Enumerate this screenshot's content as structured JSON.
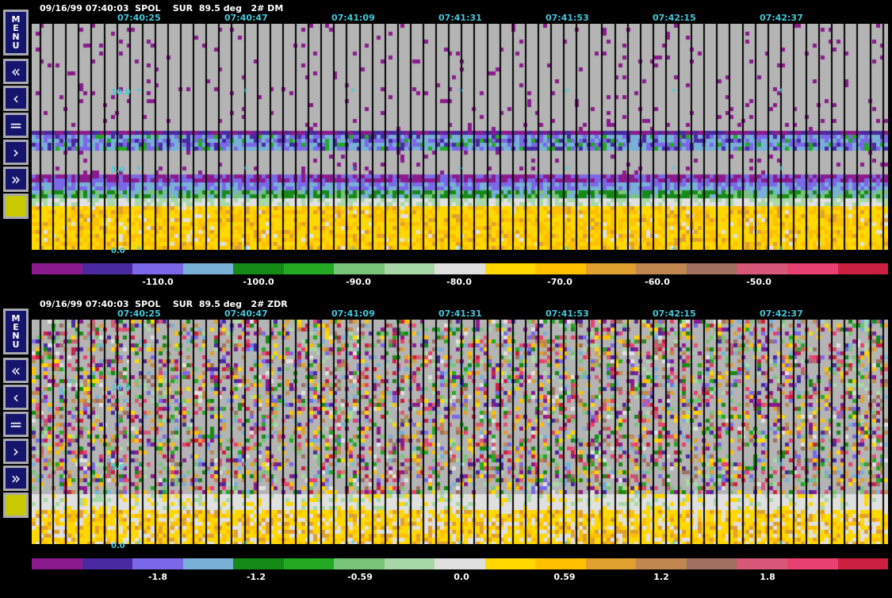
{
  "palette": [
    "#8b1a8e",
    "#4a2aa0",
    "#7b68e8",
    "#78b0d8",
    "#168a16",
    "#22aa22",
    "#78c478",
    "#a8d8a8",
    "#e0e0e0",
    "#ffd800",
    "#ffc000",
    "#e0a030",
    "#c08850",
    "#a07060",
    "#d85878",
    "#e84070",
    "#cc2040"
  ],
  "panels": [
    {
      "header": "09/16/99 07:40:03  SPOL    SUR  89.5 deg   2# DM",
      "times": [
        "07:40:25",
        "07:40:47",
        "07:41:09",
        "07:41:31",
        "07:41:53",
        "07:42:15",
        "07:42:37"
      ],
      "range_labels": [
        "10.0",
        "5.0",
        "0.0"
      ],
      "colorbar_labels": [
        "-110.0",
        "-100.0",
        "-90.0",
        "-80.0",
        "-70.0",
        "-60.0",
        "-50.0"
      ],
      "field": "DM"
    },
    {
      "header": "09/16/99 07:40:03  SPOL    SUR  89.5 deg   2# ZDR",
      "times": [
        "07:40:25",
        "07:40:47",
        "07:41:09",
        "07:41:31",
        "07:41:53",
        "07:42:15",
        "07:42:37"
      ],
      "range_labels": [
        "10.0",
        "5.0",
        "0.0"
      ],
      "colorbar_labels": [
        "-1.8",
        "-1.2",
        "-0.59",
        "0.0",
        "0.59",
        "1.2",
        "1.8"
      ],
      "field": "ZDR"
    }
  ],
  "menu": {
    "letters": [
      "M",
      "E",
      "N",
      "U"
    ]
  },
  "buttons": {
    "fast_back": "«",
    "back": "‹",
    "equal": "=",
    "forward": "›",
    "fast_forward": "»"
  }
}
